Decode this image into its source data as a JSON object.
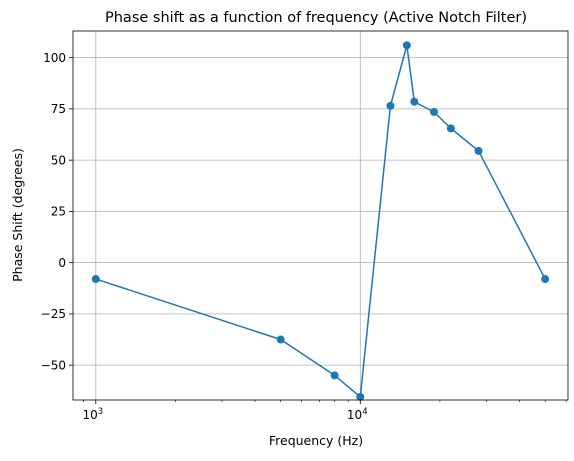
{
  "chart_data": {
    "type": "line",
    "title": "Phase shift as a function of frequency (Active Notch Filter)",
    "xlabel": "Frequency (Hz)",
    "ylabel": "Phase Shift (degrees)",
    "x_scale": "log",
    "xlim": [
      820,
      61000
    ],
    "ylim": [
      -67,
      113
    ],
    "grid": true,
    "legend": "none",
    "color": "#1f77b4",
    "x_ticks": [
      {
        "value": 1000,
        "base": "10",
        "exp": "3"
      },
      {
        "value": 10000,
        "base": "10",
        "exp": "4"
      }
    ],
    "y_ticks": [
      {
        "value": 100,
        "label": "100"
      },
      {
        "value": 75,
        "label": "75"
      },
      {
        "value": 50,
        "label": "50"
      },
      {
        "value": 25,
        "label": "25"
      },
      {
        "value": 0,
        "label": "0"
      },
      {
        "value": -25,
        "label": "−25"
      },
      {
        "value": -50,
        "label": "−50"
      }
    ],
    "series": [
      {
        "x": [
          1000,
          5000,
          8000,
          10000,
          13000,
          15000,
          16000,
          19000,
          22000,
          28000,
          50000
        ],
        "y": [
          -8,
          -37.5,
          -55,
          -65.5,
          76.5,
          106,
          78.5,
          73.5,
          65.5,
          54.5,
          -8
        ]
      }
    ]
  }
}
